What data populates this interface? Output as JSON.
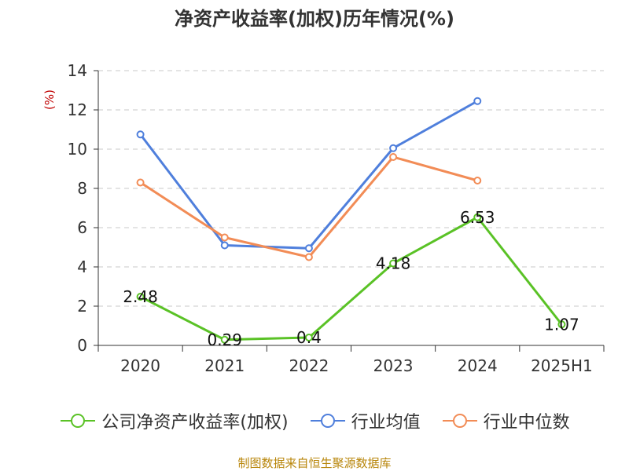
{
  "chart_data": {
    "type": "line",
    "title": "净资产收益率(加权)历年情况(%)",
    "ylabel": "(%)",
    "categories": [
      "2020",
      "2021",
      "2022",
      "2023",
      "2024",
      "2025H1"
    ],
    "ylim": [
      0,
      14
    ],
    "yticks": [
      0,
      2,
      4,
      6,
      8,
      10,
      12,
      14
    ],
    "grid": true,
    "legend_position": "bottom",
    "series": [
      {
        "name": "公司净资产收益率(加权)",
        "color": "#5ac226",
        "values": [
          2.48,
          0.29,
          0.4,
          4.18,
          6.53,
          1.07
        ],
        "labels": [
          "2.48",
          "0.29",
          "0.4",
          "4.18",
          "6.53",
          "1.07"
        ]
      },
      {
        "name": "行业均值",
        "color": "#4f7fdc",
        "values": [
          10.75,
          5.1,
          4.95,
          10.05,
          12.45,
          null
        ]
      },
      {
        "name": "行业中位数",
        "color": "#f28c56",
        "values": [
          8.3,
          5.5,
          4.5,
          9.6,
          8.4,
          null
        ]
      }
    ]
  },
  "source": "制图数据来自恒生聚源数据库"
}
